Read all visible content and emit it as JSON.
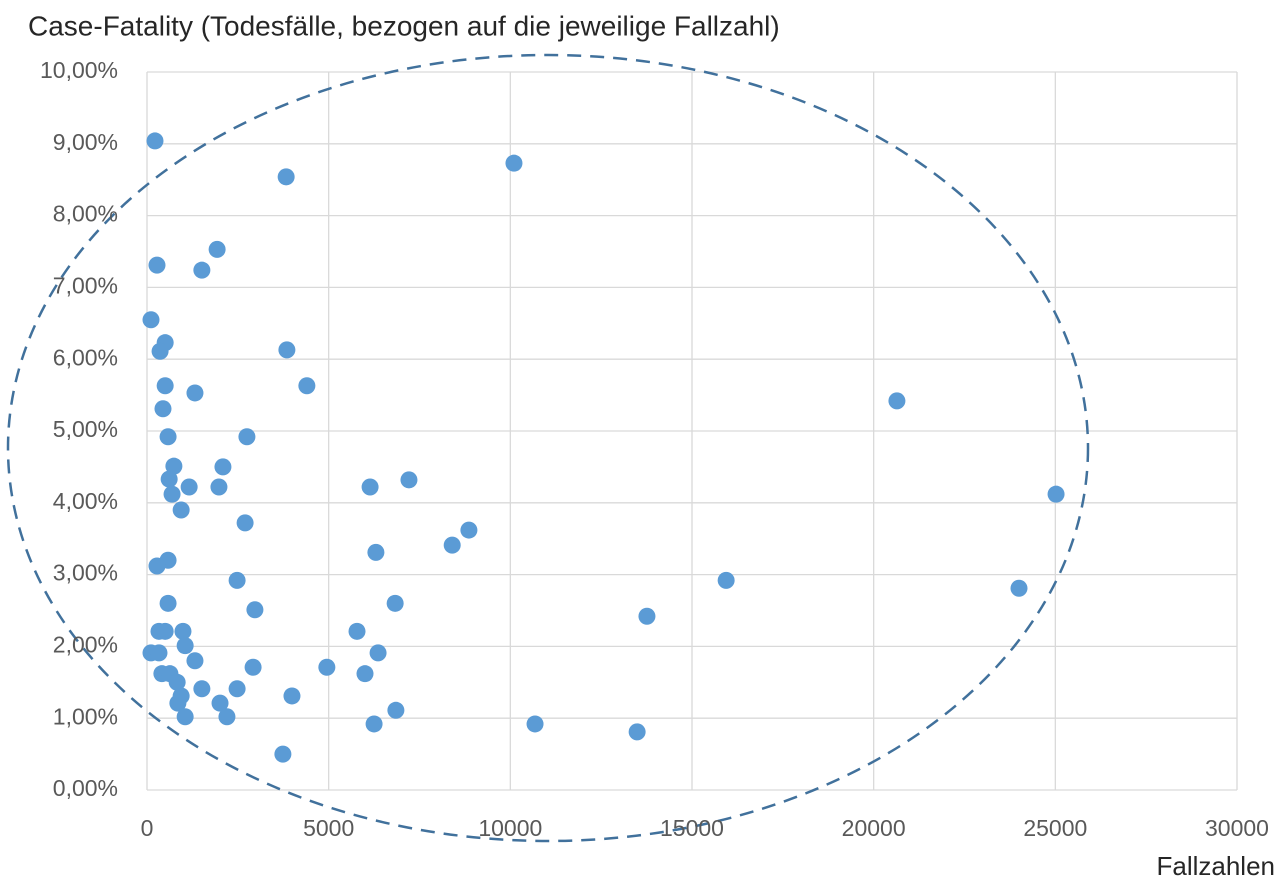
{
  "chart_data": {
    "type": "scatter",
    "title": "Case-Fatality (Todesfälle, bezogen auf die jeweilige Fallzahl)",
    "x_label": "Fallzahlen",
    "color": "#5b9bd5",
    "grid": true,
    "x": [
      220,
      10100,
      3830,
      1930,
      275,
      1510,
      110,
      500,
      360,
      3850,
      500,
      4400,
      1320,
      20640,
      440,
      580,
      2750,
      740,
      2090,
      610,
      7210,
      1160,
      1980,
      6140,
      690,
      25020,
      940,
      2700,
      8860,
      8400,
      6300,
      580,
      275,
      2480,
      15940,
      24000,
      580,
      6830,
      2970,
      13760,
      330,
      500,
      990,
      5780,
      1050,
      110,
      330,
      6360,
      1320,
      2920,
      4950,
      410,
      630,
      6000,
      830,
      1510,
      2480,
      940,
      3990,
      850,
      2010,
      6850,
      1050,
      2200,
      6250,
      10680,
      13490,
      3740
    ],
    "values": [
      9.04,
      8.73,
      8.54,
      7.53,
      7.31,
      7.24,
      6.55,
      6.23,
      6.11,
      6.13,
      5.63,
      5.63,
      5.53,
      5.42,
      5.31,
      4.92,
      4.92,
      4.51,
      4.5,
      4.33,
      4.32,
      4.22,
      4.22,
      4.22,
      4.12,
      4.12,
      3.9,
      3.72,
      3.62,
      3.41,
      3.31,
      3.2,
      3.12,
      2.92,
      2.92,
      2.81,
      2.6,
      2.6,
      2.51,
      2.42,
      2.21,
      2.21,
      2.21,
      2.21,
      2.01,
      1.91,
      1.91,
      1.91,
      1.8,
      1.71,
      1.71,
      1.62,
      1.62,
      1.62,
      1.5,
      1.41,
      1.41,
      1.31,
      1.31,
      1.21,
      1.21,
      1.11,
      1.02,
      1.02,
      0.92,
      0.92,
      0.81,
      0.5
    ],
    "xlim": [
      0,
      30000
    ],
    "xticks": [
      0,
      5000,
      10000,
      15000,
      20000,
      25000,
      30000
    ],
    "ylim": [
      0,
      10
    ],
    "yticks": [
      {
        "value": 0,
        "label": "0,00%"
      },
      {
        "value": 1,
        "label": "1,00%"
      },
      {
        "value": 2,
        "label": "2,00%"
      },
      {
        "value": 3,
        "label": "3,00%"
      },
      {
        "value": 4,
        "label": "4,00%"
      },
      {
        "value": 5,
        "label": "5,00%"
      },
      {
        "value": 6,
        "label": "6,00%"
      },
      {
        "value": 7,
        "label": "7,00%"
      },
      {
        "value": 8,
        "label": "8,00%"
      },
      {
        "value": 9,
        "label": "9,00%"
      },
      {
        "value": 10,
        "label": "10,00%"
      }
    ]
  }
}
